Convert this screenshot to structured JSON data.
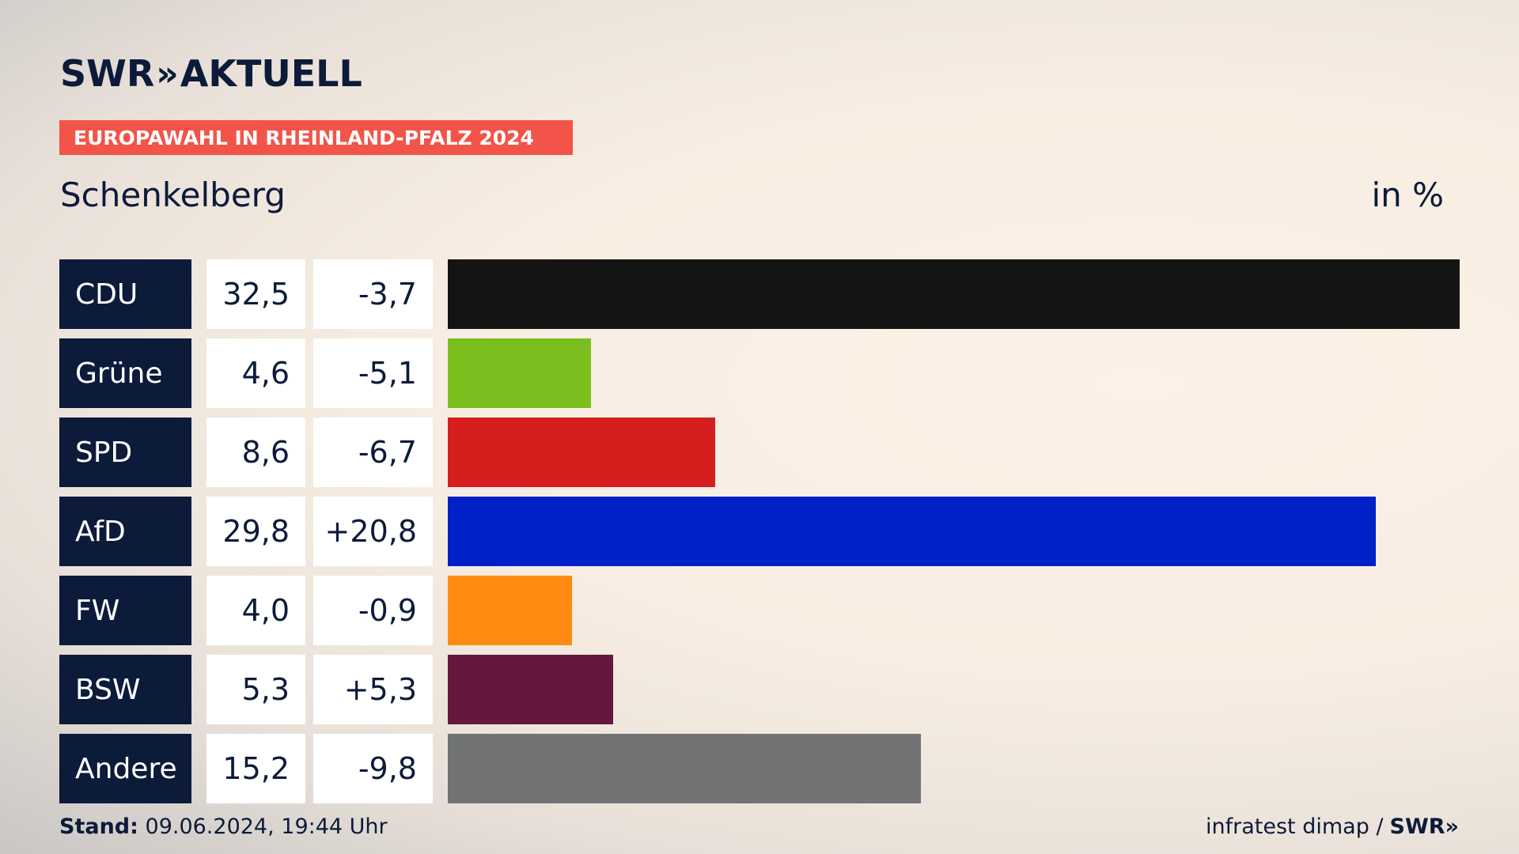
{
  "brand": {
    "logo_left": "SWR",
    "logo_chevrons": "»",
    "logo_right": "AKTUELL"
  },
  "banner": "EUROPAWAHL IN RHEINLAND-PFALZ 2024",
  "place": "Schenkelberg",
  "unit": "in %",
  "footer": {
    "stand_label": "Stand:",
    "stand_value": "09.06.2024, 19:44 Uhr",
    "source": "infratest dimap /",
    "source_brand": "SWR»"
  },
  "chart_data": {
    "type": "bar",
    "orientation": "horizontal",
    "categories": [
      "CDU",
      "Grüne",
      "SPD",
      "AfD",
      "FW",
      "BSW",
      "Andere"
    ],
    "values": [
      32.5,
      4.6,
      8.6,
      29.8,
      4.0,
      5.3,
      15.2
    ],
    "value_labels": [
      "32,5",
      "4,6",
      "8,6",
      "29,8",
      "4,0",
      "5,3",
      "15,2"
    ],
    "diff_labels": [
      "-3,7",
      "-5,1",
      "-6,7",
      "+20,8",
      "-0,9",
      "+5,3",
      "-9,8"
    ],
    "colors": [
      "#141414",
      "#7bbf1f",
      "#d61e1e",
      "#0020c8",
      "#ff8b12",
      "#67173e",
      "#717375"
    ],
    "xlim": [
      0,
      32.5
    ]
  }
}
